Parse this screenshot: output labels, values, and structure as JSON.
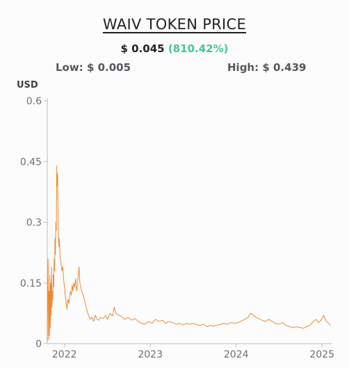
{
  "widget": {
    "title": "WAIV TOKEN PRICE",
    "price": "$ 0.045",
    "change": "(810.42%)",
    "low_label": "Low: $ 0.005",
    "high_label": "High: $ 0.439",
    "unit": "USD"
  },
  "colors": {
    "line": "#f08a2c",
    "change_positive": "#3ec99a",
    "axis": "#b9bbc0"
  },
  "chart_data": {
    "type": "line",
    "title": "WAIV TOKEN PRICE",
    "ylabel": "USD",
    "xlabel": "",
    "ylim": [
      0,
      0.6
    ],
    "yticks": [
      0,
      0.15,
      0.3,
      0.45,
      0.6
    ],
    "ytick_labels": [
      "0",
      "0.15",
      "0.3",
      "0.45",
      "0.6"
    ],
    "xlim": [
      2021.8,
      2025.12
    ],
    "xticks": [
      2022,
      2023,
      2024,
      2025
    ],
    "xtick_labels": [
      "2022",
      "2023",
      "2024",
      "2025"
    ],
    "grid": false,
    "series": [
      {
        "values": [
          [
            2021.8,
            0.005
          ],
          [
            2021.81,
            0.21
          ],
          [
            2021.815,
            0.01
          ],
          [
            2021.82,
            0.13
          ],
          [
            2021.825,
            0.02
          ],
          [
            2021.83,
            0.17
          ],
          [
            2021.835,
            0.04
          ],
          [
            2021.84,
            0.15
          ],
          [
            2021.845,
            0.07
          ],
          [
            2021.85,
            0.19
          ],
          [
            2021.855,
            0.09
          ],
          [
            2021.86,
            0.13
          ],
          [
            2021.865,
            0.11
          ],
          [
            2021.87,
            0.17
          ],
          [
            2021.875,
            0.14
          ],
          [
            2021.88,
            0.21
          ],
          [
            2021.885,
            0.18
          ],
          [
            2021.89,
            0.26
          ],
          [
            2021.895,
            0.22
          ],
          [
            2021.9,
            0.3
          ],
          [
            2021.905,
            0.28
          ],
          [
            2021.91,
            0.44
          ],
          [
            2021.915,
            0.39
          ],
          [
            2021.92,
            0.42
          ],
          [
            2021.925,
            0.33
          ],
          [
            2021.93,
            0.27
          ],
          [
            2021.935,
            0.24
          ],
          [
            2021.94,
            0.26
          ],
          [
            2021.95,
            0.21
          ],
          [
            2021.96,
            0.2
          ],
          [
            2021.97,
            0.18
          ],
          [
            2021.98,
            0.19
          ],
          [
            2021.99,
            0.16
          ],
          [
            2022.0,
            0.14
          ],
          [
            2022.01,
            0.12
          ],
          [
            2022.02,
            0.1
          ],
          [
            2022.03,
            0.085
          ],
          [
            2022.04,
            0.11
          ],
          [
            2022.05,
            0.1
          ],
          [
            2022.06,
            0.115
          ],
          [
            2022.07,
            0.13
          ],
          [
            2022.08,
            0.12
          ],
          [
            2022.09,
            0.145
          ],
          [
            2022.1,
            0.13
          ],
          [
            2022.11,
            0.15
          ],
          [
            2022.12,
            0.14
          ],
          [
            2022.13,
            0.16
          ],
          [
            2022.14,
            0.13
          ],
          [
            2022.15,
            0.14
          ],
          [
            2022.16,
            0.17
          ],
          [
            2022.17,
            0.19
          ],
          [
            2022.18,
            0.15
          ],
          [
            2022.19,
            0.14
          ],
          [
            2022.2,
            0.13
          ],
          [
            2022.22,
            0.12
          ],
          [
            2022.24,
            0.1
          ],
          [
            2022.26,
            0.085
          ],
          [
            2022.28,
            0.07
          ],
          [
            2022.3,
            0.06
          ],
          [
            2022.32,
            0.065
          ],
          [
            2022.34,
            0.055
          ],
          [
            2022.36,
            0.07
          ],
          [
            2022.38,
            0.06
          ],
          [
            2022.4,
            0.058
          ],
          [
            2022.42,
            0.065
          ],
          [
            2022.45,
            0.062
          ],
          [
            2022.48,
            0.07
          ],
          [
            2022.5,
            0.06
          ],
          [
            2022.53,
            0.075
          ],
          [
            2022.56,
            0.068
          ],
          [
            2022.58,
            0.09
          ],
          [
            2022.6,
            0.075
          ],
          [
            2022.63,
            0.07
          ],
          [
            2022.66,
            0.068
          ],
          [
            2022.7,
            0.06
          ],
          [
            2022.74,
            0.065
          ],
          [
            2022.78,
            0.058
          ],
          [
            2022.82,
            0.062
          ],
          [
            2022.86,
            0.055
          ],
          [
            2022.9,
            0.05
          ],
          [
            2022.94,
            0.048
          ],
          [
            2022.98,
            0.055
          ],
          [
            2023.02,
            0.05
          ],
          [
            2023.06,
            0.06
          ],
          [
            2023.1,
            0.055
          ],
          [
            2023.14,
            0.058
          ],
          [
            2023.18,
            0.05
          ],
          [
            2023.22,
            0.055
          ],
          [
            2023.26,
            0.052
          ],
          [
            2023.3,
            0.048
          ],
          [
            2023.34,
            0.05
          ],
          [
            2023.38,
            0.046
          ],
          [
            2023.42,
            0.05
          ],
          [
            2023.46,
            0.048
          ],
          [
            2023.5,
            0.05
          ],
          [
            2023.54,
            0.047
          ],
          [
            2023.58,
            0.045
          ],
          [
            2023.62,
            0.048
          ],
          [
            2023.66,
            0.042
          ],
          [
            2023.7,
            0.045
          ],
          [
            2023.74,
            0.043
          ],
          [
            2023.78,
            0.046
          ],
          [
            2023.82,
            0.048
          ],
          [
            2023.86,
            0.05
          ],
          [
            2023.9,
            0.048
          ],
          [
            2023.94,
            0.052
          ],
          [
            2023.98,
            0.05
          ],
          [
            2024.02,
            0.052
          ],
          [
            2024.06,
            0.056
          ],
          [
            2024.1,
            0.06
          ],
          [
            2024.14,
            0.065
          ],
          [
            2024.17,
            0.075
          ],
          [
            2024.2,
            0.07
          ],
          [
            2024.23,
            0.065
          ],
          [
            2024.26,
            0.062
          ],
          [
            2024.3,
            0.058
          ],
          [
            2024.34,
            0.055
          ],
          [
            2024.38,
            0.06
          ],
          [
            2024.42,
            0.055
          ],
          [
            2024.46,
            0.05
          ],
          [
            2024.5,
            0.048
          ],
          [
            2024.54,
            0.052
          ],
          [
            2024.58,
            0.045
          ],
          [
            2024.62,
            0.042
          ],
          [
            2024.66,
            0.04
          ],
          [
            2024.7,
            0.042
          ],
          [
            2024.74,
            0.04
          ],
          [
            2024.78,
            0.038
          ],
          [
            2024.82,
            0.042
          ],
          [
            2024.86,
            0.045
          ],
          [
            2024.9,
            0.055
          ],
          [
            2024.93,
            0.06
          ],
          [
            2024.96,
            0.052
          ],
          [
            2024.99,
            0.058
          ],
          [
            2025.02,
            0.07
          ],
          [
            2025.05,
            0.055
          ],
          [
            2025.08,
            0.05
          ],
          [
            2025.1,
            0.045
          ]
        ]
      }
    ]
  }
}
